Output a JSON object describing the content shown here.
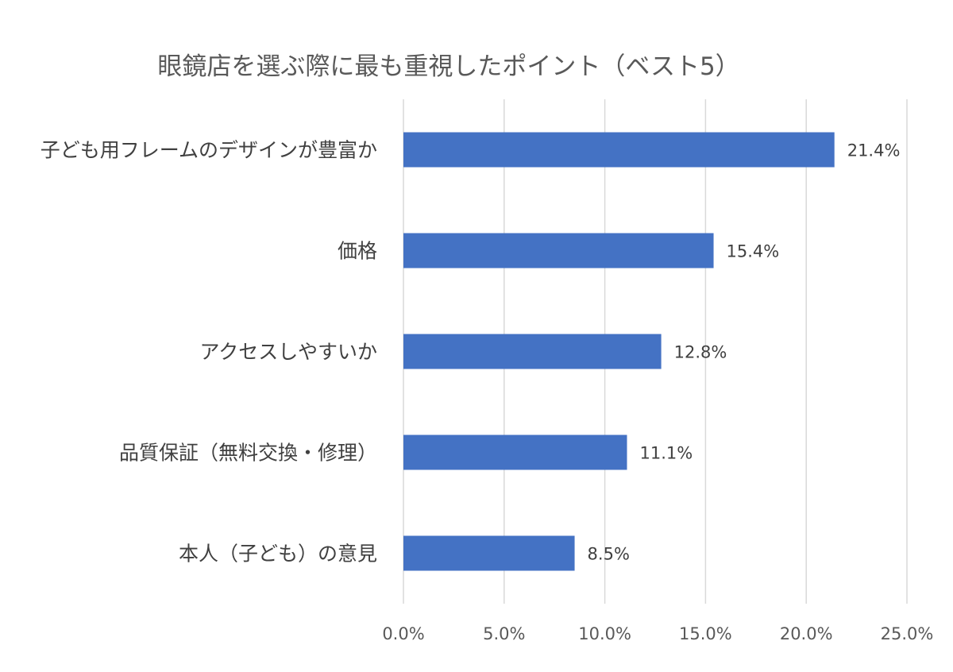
{
  "chart_data": {
    "type": "bar",
    "orientation": "horizontal",
    "title": "眼鏡店を選ぶ際に最も重視したポイント（ベスト5）",
    "categories": [
      "子ども用フレームのデザインが豊富か",
      "価格",
      "アクセスしやすいか",
      "品質保証（無料交換・修理）",
      "本人（子ども）の意見"
    ],
    "values": [
      21.4,
      15.4,
      12.8,
      11.1,
      8.5
    ],
    "value_labels": [
      "21.4%",
      "15.4%",
      "12.8%",
      "11.1%",
      "8.5%"
    ],
    "xlim": [
      0,
      25
    ],
    "xticks": [
      0,
      5,
      10,
      15,
      20,
      25
    ],
    "xtick_labels": [
      "0.0%",
      "5.0%",
      "10.0%",
      "15.0%",
      "20.0%",
      "25.0%"
    ],
    "xlabel": "",
    "ylabel": "",
    "grid": "vertical",
    "bar_color": "#4472C4"
  }
}
